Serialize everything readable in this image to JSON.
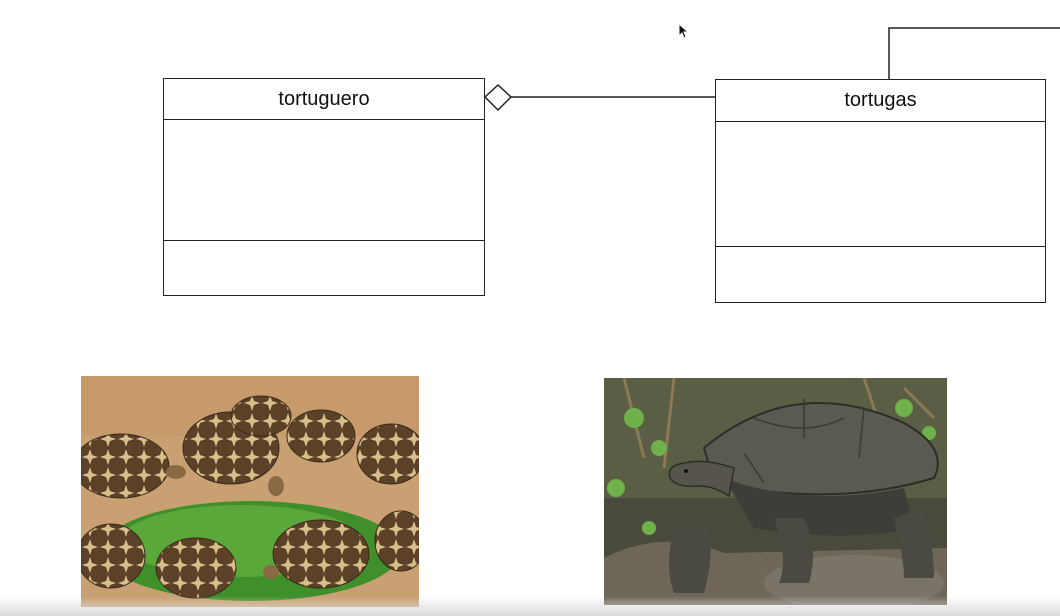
{
  "diagram": {
    "classes": [
      {
        "id": "tortuguero",
        "name": "tortuguero"
      },
      {
        "id": "tortugas",
        "name": "tortugas"
      }
    ],
    "relations": [
      {
        "type": "aggregation",
        "whole": "tortuguero",
        "part": "tortugas"
      },
      {
        "type": "association",
        "from": "tortugas",
        "to": "offscreen-right"
      }
    ]
  },
  "images": [
    {
      "id": "star-tortoises-photo",
      "subject": "group of star tortoises eating greens"
    },
    {
      "id": "giant-tortoise-photo",
      "subject": "giant tortoise walking on rocks"
    }
  ]
}
